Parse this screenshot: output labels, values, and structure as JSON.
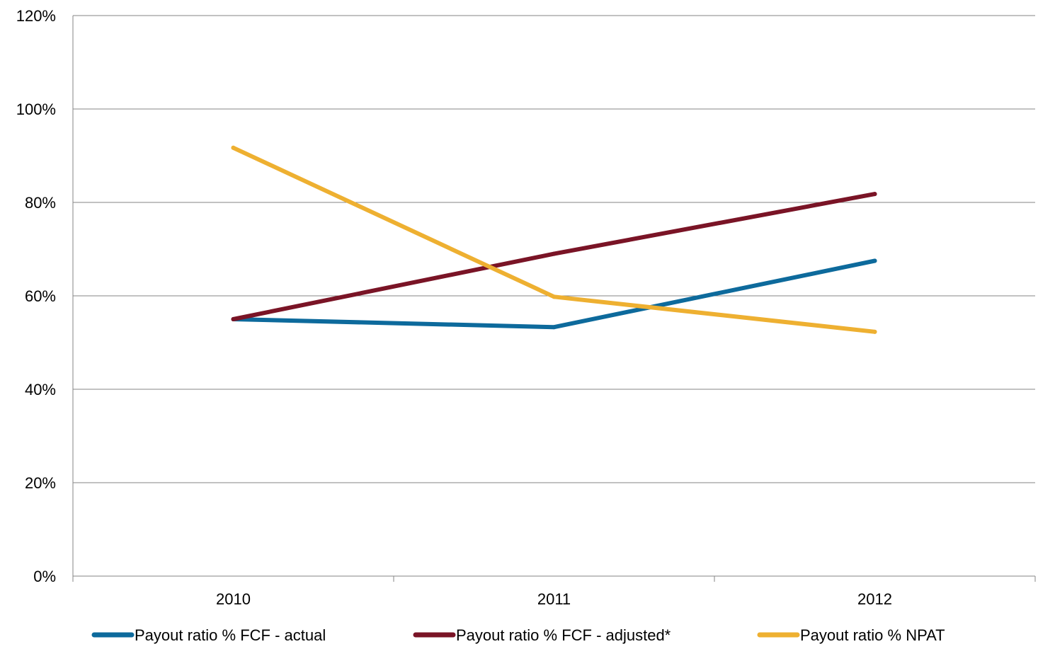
{
  "chart_data": {
    "type": "line",
    "categories": [
      "2010",
      "2011",
      "2012"
    ],
    "series": [
      {
        "name": "Payout ratio % FCF - actual",
        "values": [
          55,
          53.3,
          67.5
        ],
        "color": "#0D6A9C"
      },
      {
        "name": "Payout ratio % FCF - adjusted*",
        "values": [
          55,
          69,
          81.8
        ],
        "color": "#7A1426"
      },
      {
        "name": "Payout ratio % NPAT",
        "values": [
          91.7,
          59.8,
          52.3
        ],
        "color": "#EEB031"
      }
    ],
    "ylim": [
      0,
      120
    ],
    "yticks": [
      0,
      20,
      40,
      60,
      80,
      100,
      120
    ],
    "ytick_labels": [
      "0%",
      "20%",
      "40%",
      "60%",
      "80%",
      "100%",
      "120%"
    ],
    "title": "",
    "xlabel": "",
    "ylabel": "",
    "grid": "horizontal",
    "legend_position": "bottom"
  }
}
